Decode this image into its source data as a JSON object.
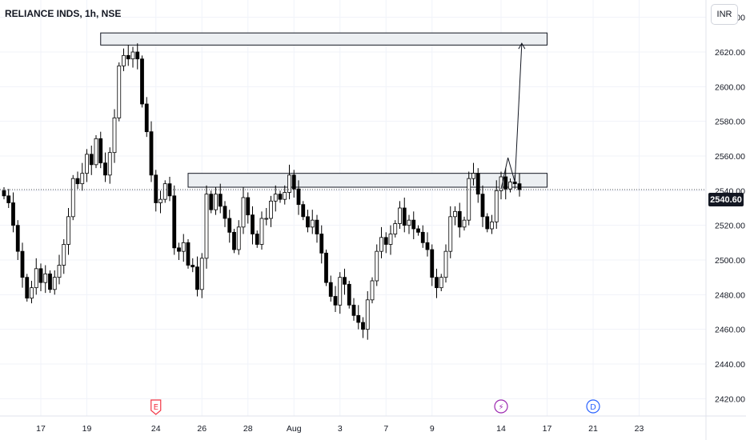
{
  "header": {
    "symbol_label": "RELIANCE INDS, 1h, NSE",
    "currency_label": "INR"
  },
  "current_price": {
    "value": 2540.6,
    "label": "2540.60"
  },
  "event_markers": [
    {
      "label": "E",
      "x_label": "24",
      "color": "#f23645",
      "shape": "badge"
    },
    {
      "label": "⚡",
      "x_label": "14",
      "color": "#9c27b0",
      "shape": "circle"
    },
    {
      "label": "D",
      "x_label": "21",
      "color": "#2962ff",
      "shape": "circle"
    }
  ],
  "colors": {
    "up_candle": "#ffffff",
    "down_candle": "#000000",
    "wick": "#000000",
    "grid": "#f0f3fa",
    "zone_fill": "#eceff2"
  },
  "chart_data": {
    "type": "candlestick",
    "title": "RELIANCE INDS, 1h, NSE",
    "y_axis": {
      "ticks": [
        2420,
        2440,
        2460,
        2480,
        2500,
        2520,
        2540,
        2560,
        2580,
        2600,
        2620,
        2640
      ],
      "tick_labels": [
        "2420.00",
        "2440.00",
        "2460.00",
        "2480.00",
        "2500.00",
        "2520.00",
        "2540.00",
        "2560.00",
        "2580.00",
        "2600.00",
        "2620.00",
        "2640.00"
      ],
      "range": [
        2410,
        2650
      ]
    },
    "x_axis": {
      "tick_labels": [
        "17",
        "19",
        "24",
        "26",
        "28",
        "Aug",
        "3",
        "7",
        "9",
        "14",
        "17",
        "21",
        "23"
      ],
      "tick_index": [
        8,
        18,
        33,
        43,
        53,
        63,
        73,
        83,
        93,
        108,
        118,
        128,
        138
      ]
    },
    "resistance_zones": [
      {
        "y_low": 2624,
        "y_high": 2631,
        "x_start_index": 21,
        "x_end_index": 118
      },
      {
        "y_low": 2542,
        "y_high": 2550,
        "x_start_index": 40,
        "x_end_index": 118
      }
    ],
    "projection_path": [
      {
        "x_index": 108,
        "y": 2541
      },
      {
        "x_index": 109.5,
        "y": 2559
      },
      {
        "x_index": 111,
        "y": 2545
      },
      {
        "x_index": 112.5,
        "y": 2625
      }
    ],
    "closes": [
      2537,
      2533,
      2520,
      2505,
      2490,
      2478,
      2484,
      2495,
      2487,
      2492,
      2483,
      2490,
      2497,
      2509,
      2525,
      2547,
      2544,
      2550,
      2561,
      2555,
      2570,
      2556,
      2549,
      2562,
      2582,
      2612,
      2618,
      2616,
      2620,
      2616,
      2590,
      2574,
      2549,
      2533,
      2535,
      2544,
      2537,
      2507,
      2505,
      2510,
      2497,
      2496,
      2483,
      2501,
      2538,
      2529,
      2538,
      2531,
      2524,
      2516,
      2506,
      2519,
      2536,
      2526,
      2515,
      2509,
      2524,
      2524,
      2534,
      2538,
      2535,
      2539,
      2549,
      2541,
      2532,
      2525,
      2519,
      2523,
      2515,
      2504,
      2487,
      2479,
      2474,
      2490,
      2486,
      2474,
      2468,
      2464,
      2460,
      2477,
      2488,
      2505,
      2513,
      2509,
      2515,
      2521,
      2530,
      2520,
      2523,
      2518,
      2516,
      2510,
      2506,
      2490,
      2484,
      2490,
      2505,
      2525,
      2528,
      2519,
      2523,
      2547,
      2550,
      2538,
      2525,
      2518,
      2522,
      2540,
      2548,
      2541,
      2545,
      2544,
      2540.6
    ]
  }
}
